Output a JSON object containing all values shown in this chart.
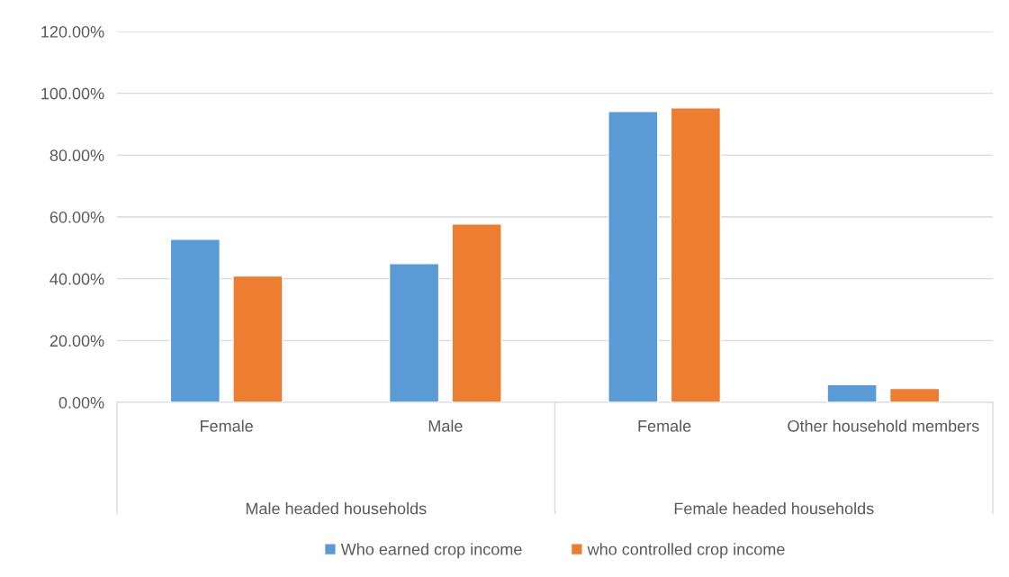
{
  "chart_data": {
    "type": "bar",
    "categories": [
      "Female",
      "Male",
      "Female",
      "Other household members"
    ],
    "series": [
      {
        "name": "Who earned crop income",
        "color": "#5b9bd5",
        "values": [
          52.8,
          44.9,
          94.1,
          5.7
        ]
      },
      {
        "name": "who controlled crop income",
        "color": "#ed7d31",
        "values": [
          40.9,
          57.7,
          95.3,
          4.5
        ]
      }
    ],
    "ylim": [
      0,
      120
    ],
    "yticks": [
      {
        "value": 0,
        "label": "0.00%"
      },
      {
        "value": 20,
        "label": "20.00%"
      },
      {
        "value": 40,
        "label": "40.00%"
      },
      {
        "value": 60,
        "label": "60.00%"
      },
      {
        "value": 80,
        "label": "80.00%"
      },
      {
        "value": 100,
        "label": "100.00%"
      },
      {
        "value": 120,
        "label": "120.00%"
      }
    ],
    "annotations": [
      "Male headed households",
      "Female headed households"
    ],
    "grid": "y",
    "legend": "bottom"
  }
}
